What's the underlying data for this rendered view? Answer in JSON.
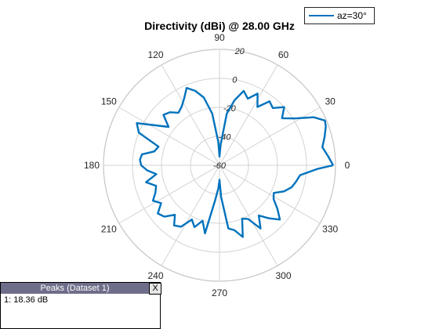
{
  "chart_data": {
    "type": "polar",
    "title": "Directivity (dBi) @ 28.00 GHz",
    "legend": {
      "entries": [
        "az=30°"
      ],
      "placement": "top-right"
    },
    "series": [
      {
        "name": "az=30°",
        "color": "#0072bd",
        "angles_deg": [
          0,
          5,
          10,
          15,
          20,
          23,
          27,
          32,
          37,
          42,
          47,
          52,
          57,
          62,
          67,
          72,
          77,
          82,
          87,
          90,
          93,
          98,
          103,
          108,
          113,
          118,
          123,
          128,
          133,
          138,
          143,
          148,
          153,
          158,
          163,
          168,
          172,
          176,
          180,
          184,
          188,
          193,
          198,
          203,
          208,
          213,
          218,
          223,
          228,
          233,
          238,
          243,
          248,
          253,
          258,
          263,
          267,
          270,
          273,
          278,
          283,
          288,
          293,
          298,
          303,
          308,
          313,
          318,
          323,
          328,
          333,
          338,
          343,
          348,
          353,
          358,
          360
        ],
        "values_db": [
          18.36,
          15,
          12,
          15,
          18,
          19,
          13,
          1,
          -6,
          0,
          -6,
          -4,
          -12,
          -4,
          -10,
          -6,
          -14,
          -24,
          -46,
          -54,
          -44,
          -24,
          -12,
          -6,
          -2,
          -8,
          -12,
          -14,
          -10,
          -8,
          -16,
          -8,
          4,
          0,
          -16,
          -14,
          -6,
          -5,
          -6,
          -10,
          -16,
          -8,
          -14,
          -12,
          -8,
          -12,
          -6,
          -8,
          -14,
          -8,
          -10,
          -18,
          -14,
          -20,
          -12,
          -36,
          -44,
          -50,
          -38,
          -16,
          -14,
          -8,
          -20,
          -18,
          -8,
          -16,
          -10,
          -4,
          -10,
          -16,
          -18,
          -12,
          -8,
          -6,
          -4,
          8,
          18.36
        ]
      }
    ],
    "r_ticks": [
      "20",
      "0",
      "-20",
      "-40",
      "-60"
    ],
    "r_range": [
      -60,
      20
    ],
    "angle_ticks": [
      "0",
      "30",
      "60",
      "90",
      "120",
      "150",
      "180",
      "210",
      "240",
      "270",
      "300",
      "330"
    ],
    "grid": true
  },
  "peaks": {
    "title": "Peaks (Dataset 1)",
    "close_label": "X",
    "entry": "1: 18.36 dB"
  }
}
